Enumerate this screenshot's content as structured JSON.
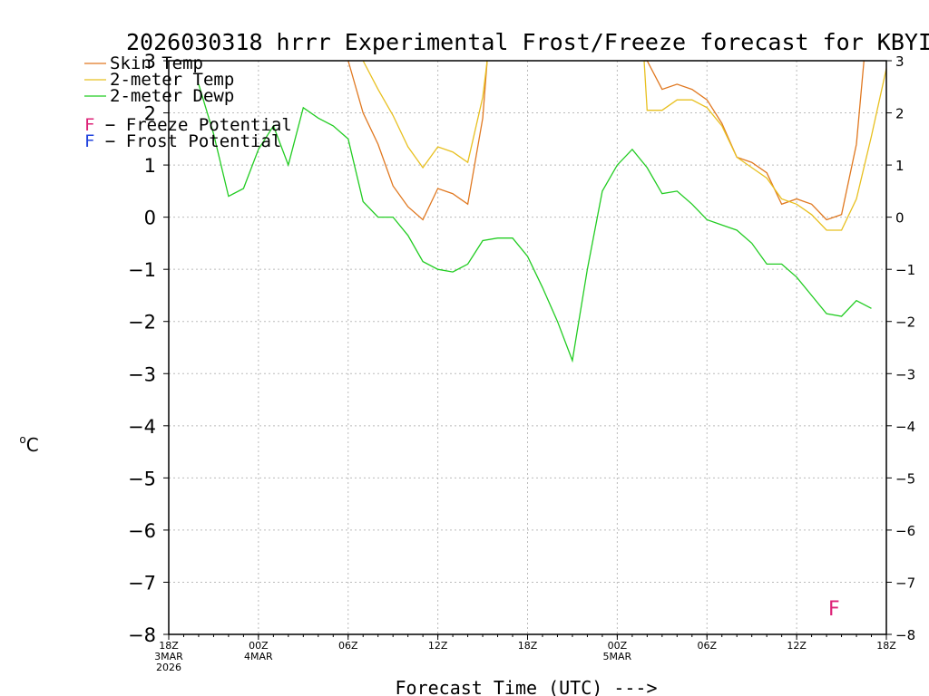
{
  "chart_data": {
    "type": "line",
    "title": "2026030318 hrrr Experimental Frost/Freeze forecast for KBYI",
    "ylabel_symbol": "o",
    "ylabel_unit": "C",
    "xlabel": "Forecast Time (UTC) --->",
    "ylim": [
      -8,
      3
    ],
    "xlim": [
      0,
      48
    ],
    "yticks": [
      3,
      2,
      1,
      0,
      -1,
      -2,
      -3,
      -4,
      -5,
      -6,
      -7,
      -8
    ],
    "ytick_labels": [
      "3",
      "2",
      "1",
      "0",
      "−1",
      "−2",
      "−3",
      "−4",
      "−5",
      "−6",
      "−7",
      "−8"
    ],
    "xticks": [
      {
        "x": 0,
        "lines": [
          "18Z",
          "3MAR",
          "2026"
        ]
      },
      {
        "x": 6,
        "lines": [
          "00Z",
          "4MAR"
        ]
      },
      {
        "x": 12,
        "lines": [
          "06Z"
        ]
      },
      {
        "x": 18,
        "lines": [
          "12Z"
        ]
      },
      {
        "x": 24,
        "lines": [
          "18Z"
        ]
      },
      {
        "x": 30,
        "lines": [
          "00Z",
          "5MAR"
        ]
      },
      {
        "x": 36,
        "lines": [
          "06Z"
        ]
      },
      {
        "x": 42,
        "lines": [
          "12Z"
        ]
      },
      {
        "x": 48,
        "lines": [
          "18Z"
        ]
      }
    ],
    "series": [
      {
        "name": "Skin Temp",
        "color": "#e07820",
        "points": [
          [
            12,
            3.3
          ],
          [
            13,
            2.0
          ],
          [
            14,
            1.4
          ],
          [
            15,
            0.6
          ],
          [
            16,
            0.2
          ],
          [
            17,
            -0.05
          ],
          [
            18,
            0.55
          ],
          [
            19,
            0.45
          ],
          [
            20,
            0.25
          ],
          [
            21,
            1.9
          ],
          [
            21.3,
            3.3
          ],
          [
            null,
            null
          ],
          [
            31.8,
            3.3
          ],
          [
            32,
            3.0
          ],
          [
            33,
            2.45
          ],
          [
            34,
            2.55
          ],
          [
            35,
            2.45
          ],
          [
            36,
            2.25
          ],
          [
            37,
            1.8
          ],
          [
            38,
            1.15
          ],
          [
            39,
            1.05
          ],
          [
            40,
            0.85
          ],
          [
            41,
            0.25
          ],
          [
            42,
            0.35
          ],
          [
            43,
            0.25
          ],
          [
            44,
            -0.05
          ],
          [
            45,
            0.05
          ],
          [
            46,
            1.4
          ],
          [
            46.5,
            3.3
          ]
        ]
      },
      {
        "name": "2-meter Temp",
        "color": "#e8c020",
        "points": [
          [
            13,
            3.3
          ],
          [
            14,
            2.45
          ],
          [
            15,
            1.95
          ],
          [
            16,
            1.35
          ],
          [
            17,
            0.95
          ],
          [
            18,
            1.35
          ],
          [
            19,
            1.25
          ],
          [
            20,
            1.05
          ],
          [
            21,
            2.3
          ],
          [
            21.3,
            3.3
          ],
          [
            null,
            null
          ],
          [
            31.8,
            3.3
          ],
          [
            32,
            2.05
          ],
          [
            33,
            2.05
          ],
          [
            34,
            2.25
          ],
          [
            35,
            2.25
          ],
          [
            36,
            2.1
          ],
          [
            37,
            1.75
          ],
          [
            38,
            1.15
          ],
          [
            39,
            0.95
          ],
          [
            40,
            0.75
          ],
          [
            41,
            0.35
          ],
          [
            42,
            0.25
          ],
          [
            43,
            0.05
          ],
          [
            44,
            -0.25
          ],
          [
            45,
            -0.25
          ],
          [
            46,
            0.35
          ],
          [
            47,
            1.55
          ],
          [
            48,
            2.85
          ]
        ]
      },
      {
        "name": "2-meter Dewp",
        "color": "#22cc22",
        "points": [
          [
            2,
            2.55
          ],
          [
            3,
            1.6
          ],
          [
            4,
            0.4
          ],
          [
            5,
            0.55
          ],
          [
            6,
            1.3
          ],
          [
            7,
            1.75
          ],
          [
            8,
            1.0
          ],
          [
            9,
            2.1
          ],
          [
            10,
            1.9
          ],
          [
            11,
            1.75
          ],
          [
            12,
            1.5
          ],
          [
            13,
            0.3
          ],
          [
            14,
            0.0
          ],
          [
            15,
            0.0
          ],
          [
            16,
            -0.35
          ],
          [
            17,
            -0.85
          ],
          [
            18,
            -1.0
          ],
          [
            19,
            -1.05
          ],
          [
            20,
            -0.9
          ],
          [
            21,
            -0.45
          ],
          [
            22,
            -0.4
          ],
          [
            23,
            -0.4
          ],
          [
            24,
            -0.75
          ],
          [
            25,
            -1.35
          ],
          [
            26,
            -2.0
          ],
          [
            27,
            -2.75
          ],
          [
            28,
            -1.0
          ],
          [
            29,
            0.5
          ],
          [
            30,
            1.0
          ],
          [
            31,
            1.3
          ],
          [
            32,
            0.95
          ],
          [
            33,
            0.45
          ],
          [
            34,
            0.5
          ],
          [
            35,
            0.25
          ],
          [
            36,
            -0.05
          ],
          [
            37,
            -0.15
          ],
          [
            38,
            -0.25
          ],
          [
            39,
            -0.5
          ],
          [
            40,
            -0.9
          ],
          [
            41,
            -0.9
          ],
          [
            42,
            -1.15
          ],
          [
            43,
            -1.5
          ],
          [
            44,
            -1.85
          ],
          [
            45,
            -1.9
          ],
          [
            46,
            -1.6
          ],
          [
            47,
            -1.75
          ]
        ]
      }
    ],
    "legend": [
      "Skin Temp",
      "2-meter Temp",
      "2-meter Dewp"
    ],
    "legend_position": "top-left",
    "potential_legend": [
      {
        "letter": "F",
        "text": " − Freeze Potential",
        "color": "#dd2277"
      },
      {
        "letter": "F",
        "text": " − Frost Potential",
        "color": "#2244dd"
      }
    ],
    "markers": [
      {
        "letter": "F",
        "x": 44.5,
        "y": -7.5,
        "color": "#dd2277",
        "meaning": "Freeze Potential"
      }
    ]
  }
}
